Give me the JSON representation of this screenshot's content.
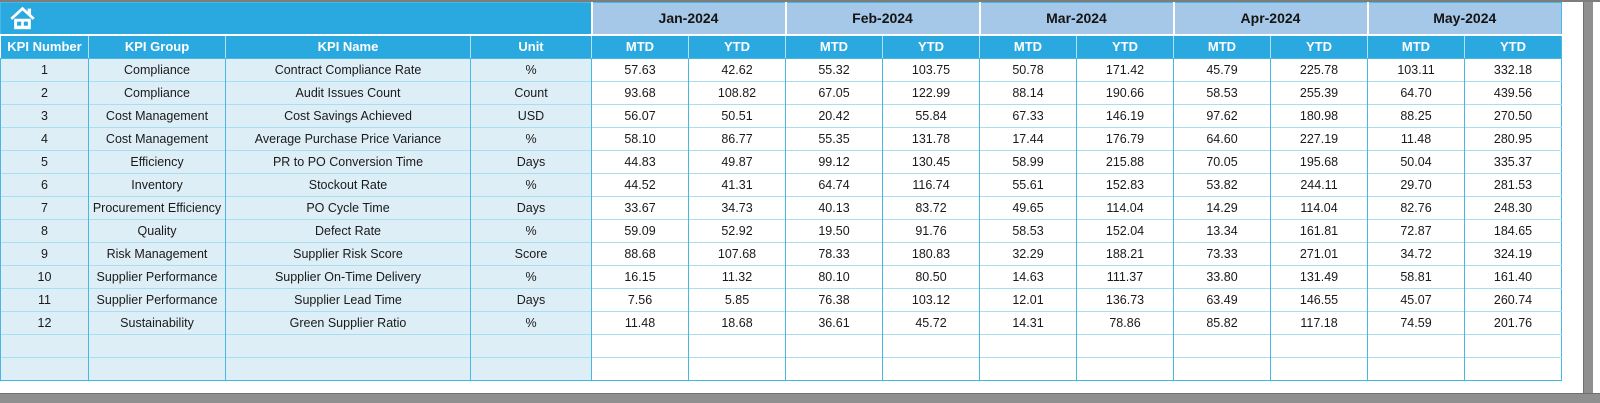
{
  "icons": {
    "home": "home-icon"
  },
  "colors": {
    "header_cyan": "#29a9e0",
    "month_band_blue": "#a5c8e9",
    "left_cell_blue": "#ddeef7",
    "grid_cyan": "#45b9e3",
    "grid_light_cyan": "#a5dff0",
    "scrollbar_gray": "#8f8f8f",
    "header_text": "#ffffff",
    "body_text": "#1a1a1a"
  },
  "table": {
    "left_headers": [
      "KPI Number",
      "KPI Group",
      "KPI Name",
      "Unit"
    ],
    "months": [
      "Jan-2024",
      "Feb-2024",
      "Mar-2024",
      "Apr-2024",
      "May-2024"
    ],
    "sub_headers": [
      "MTD",
      "YTD"
    ],
    "empty_row_count": 2,
    "rows": [
      {
        "number": "1",
        "group": "Compliance",
        "name": "Contract Compliance Rate",
        "unit": "%",
        "values": [
          "57.63",
          "42.62",
          "55.32",
          "103.75",
          "50.78",
          "171.42",
          "45.79",
          "225.78",
          "103.11",
          "332.18"
        ]
      },
      {
        "number": "2",
        "group": "Compliance",
        "name": "Audit Issues Count",
        "unit": "Count",
        "values": [
          "93.68",
          "108.82",
          "67.05",
          "122.99",
          "88.14",
          "190.66",
          "58.53",
          "255.39",
          "64.70",
          "439.56"
        ]
      },
      {
        "number": "3",
        "group": "Cost Management",
        "name": "Cost Savings Achieved",
        "unit": "USD",
        "values": [
          "56.07",
          "50.51",
          "20.42",
          "55.84",
          "67.33",
          "146.19",
          "97.62",
          "180.98",
          "88.25",
          "270.50"
        ]
      },
      {
        "number": "4",
        "group": "Cost Management",
        "name": "Average Purchase Price Variance",
        "unit": "%",
        "values": [
          "58.10",
          "86.77",
          "55.35",
          "131.78",
          "17.44",
          "176.79",
          "64.60",
          "227.19",
          "11.48",
          "280.95"
        ]
      },
      {
        "number": "5",
        "group": "Efficiency",
        "name": "PR to PO Conversion Time",
        "unit": "Days",
        "values": [
          "44.83",
          "49.87",
          "99.12",
          "130.45",
          "58.99",
          "215.88",
          "70.05",
          "195.68",
          "50.04",
          "335.37"
        ]
      },
      {
        "number": "6",
        "group": "Inventory",
        "name": "Stockout Rate",
        "unit": "%",
        "values": [
          "44.52",
          "41.31",
          "64.74",
          "116.74",
          "55.61",
          "152.83",
          "53.82",
          "244.11",
          "29.70",
          "281.53"
        ]
      },
      {
        "number": "7",
        "group": "Procurement Efficiency",
        "name": "PO Cycle Time",
        "unit": "Days",
        "values": [
          "33.67",
          "34.73",
          "40.13",
          "83.72",
          "49.65",
          "114.04",
          "14.29",
          "114.04",
          "82.76",
          "248.30"
        ]
      },
      {
        "number": "8",
        "group": "Quality",
        "name": "Defect Rate",
        "unit": "%",
        "values": [
          "59.09",
          "52.92",
          "19.50",
          "91.76",
          "58.53",
          "152.04",
          "13.34",
          "161.81",
          "72.87",
          "184.65"
        ]
      },
      {
        "number": "9",
        "group": "Risk Management",
        "name": "Supplier Risk Score",
        "unit": "Score",
        "values": [
          "88.68",
          "107.68",
          "78.33",
          "180.83",
          "32.29",
          "188.21",
          "73.33",
          "271.01",
          "34.72",
          "324.19"
        ]
      },
      {
        "number": "10",
        "group": "Supplier Performance",
        "name": "Supplier On-Time Delivery",
        "unit": "%",
        "values": [
          "16.15",
          "11.32",
          "80.10",
          "80.50",
          "14.63",
          "111.37",
          "33.80",
          "131.49",
          "58.81",
          "161.40"
        ]
      },
      {
        "number": "11",
        "group": "Supplier Performance",
        "name": "Supplier Lead Time",
        "unit": "Days",
        "values": [
          "7.56",
          "5.85",
          "76.38",
          "103.12",
          "12.01",
          "136.73",
          "63.49",
          "146.55",
          "45.07",
          "260.74"
        ]
      },
      {
        "number": "12",
        "group": "Sustainability",
        "name": "Green Supplier Ratio",
        "unit": "%",
        "values": [
          "11.48",
          "18.68",
          "36.61",
          "45.72",
          "14.31",
          "78.86",
          "85.82",
          "117.18",
          "74.59",
          "201.76"
        ]
      }
    ]
  }
}
